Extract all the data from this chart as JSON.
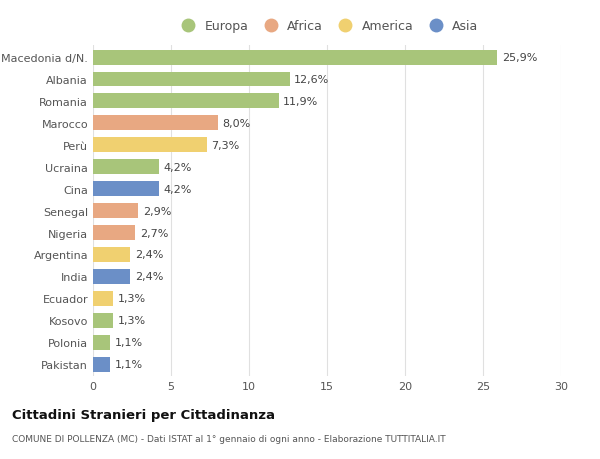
{
  "categories": [
    "Macedonia d/N.",
    "Albania",
    "Romania",
    "Marocco",
    "Perù",
    "Ucraina",
    "Cina",
    "Senegal",
    "Nigeria",
    "Argentina",
    "India",
    "Ecuador",
    "Kosovo",
    "Polonia",
    "Pakistan"
  ],
  "values": [
    25.9,
    12.6,
    11.9,
    8.0,
    7.3,
    4.2,
    4.2,
    2.9,
    2.7,
    2.4,
    2.4,
    1.3,
    1.3,
    1.1,
    1.1
  ],
  "labels": [
    "25,9%",
    "12,6%",
    "11,9%",
    "8,0%",
    "7,3%",
    "4,2%",
    "4,2%",
    "2,9%",
    "2,7%",
    "2,4%",
    "2,4%",
    "1,3%",
    "1,3%",
    "1,1%",
    "1,1%"
  ],
  "continents": [
    "Europa",
    "Europa",
    "Europa",
    "Africa",
    "America",
    "Europa",
    "Asia",
    "Africa",
    "Africa",
    "America",
    "Asia",
    "America",
    "Europa",
    "Europa",
    "Asia"
  ],
  "colors": {
    "Europa": "#a8c57a",
    "Africa": "#e8a882",
    "America": "#f0d070",
    "Asia": "#6b8fc7"
  },
  "legend_order": [
    "Europa",
    "Africa",
    "America",
    "Asia"
  ],
  "xlim": [
    0,
    30
  ],
  "xticks": [
    0,
    5,
    10,
    15,
    20,
    25,
    30
  ],
  "title": "Cittadini Stranieri per Cittadinanza",
  "subtitle": "COMUNE DI POLLENZA (MC) - Dati ISTAT al 1° gennaio di ogni anno - Elaborazione TUTTITALIA.IT",
  "bg_color": "#ffffff",
  "grid_color": "#e0e0e0",
  "bar_height": 0.68,
  "label_fontsize": 8,
  "ytick_fontsize": 8,
  "xtick_fontsize": 8
}
